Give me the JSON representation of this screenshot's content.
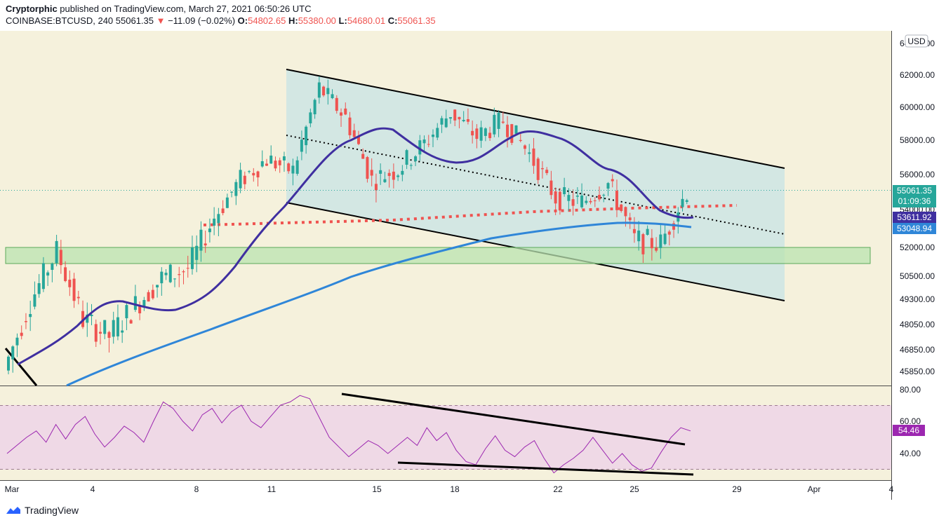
{
  "header": {
    "author": "Cryptorphic",
    "published": "published on TradingView.com, March 27, 2021 06:50:26 UTC",
    "symbol": "COINBASE:BTCUSD, 240",
    "last": "55061.35",
    "change": "−11.09 (−0.02%)",
    "o_label": "O:",
    "o": "54802.65",
    "h_label": "H:",
    "h": "55380.00",
    "l_label": "L:",
    "l": "54680.01",
    "c_label": "C:",
    "c": "55061.35"
  },
  "footer": {
    "brand": "TradingView"
  },
  "colors": {
    "background": "#f5f1dc",
    "up": "#26a69a",
    "down": "#ef5350",
    "channel_fill": "#cfe6e3",
    "support_zone": "#b9e3b0",
    "ema_short": "#3f2fa0",
    "ema_long": "#2f86d8",
    "rsi_line": "#9c27b0",
    "rsi_band": "#efd9e6"
  },
  "chart_data": [
    {
      "type": "candlestick",
      "title": "COINBASE:BTCUSD, 240",
      "price_unit": "USD",
      "y_ticks": [
        "64000.00",
        "62000.00",
        "60000.00",
        "58000.00",
        "56000.00",
        "54000.00",
        "52000.00",
        "50500.00",
        "49300.00",
        "48050.00",
        "46850.00",
        "45850.00"
      ],
      "x_ticks": [
        "Mar",
        "4",
        "8",
        "11",
        "15",
        "18",
        "22",
        "25",
        "29",
        "Apr",
        "4"
      ],
      "last_price": "55061.35",
      "countdown": "01:09:36",
      "ema_short_value": "53611.92",
      "ema_long_value": "53048.94",
      "ohlc_samples": [
        {
          "date": "Mar 1",
          "o": 45200,
          "h": 46200,
          "l": 44900,
          "c": 45900
        },
        {
          "date": "Mar 2",
          "o": 48000,
          "h": 49900,
          "l": 47200,
          "c": 49200
        },
        {
          "date": "Mar 3",
          "o": 50800,
          "h": 52500,
          "l": 50200,
          "c": 51800
        },
        {
          "date": "Mar 4",
          "o": 50200,
          "h": 50900,
          "l": 47800,
          "c": 48300
        },
        {
          "date": "Mar 5",
          "o": 47900,
          "h": 48800,
          "l": 46400,
          "c": 47500
        },
        {
          "date": "Mar 6",
          "o": 48500,
          "h": 49500,
          "l": 48000,
          "c": 49000
        },
        {
          "date": "Mar 7",
          "o": 49200,
          "h": 50700,
          "l": 48900,
          "c": 50400
        },
        {
          "date": "Mar 8",
          "o": 50500,
          "h": 51600,
          "l": 49800,
          "c": 50900
        },
        {
          "date": "Mar 9",
          "o": 52000,
          "h": 53900,
          "l": 51600,
          "c": 53600
        },
        {
          "date": "Mar 10",
          "o": 54500,
          "h": 56100,
          "l": 53900,
          "c": 55700
        },
        {
          "date": "Mar 11",
          "o": 55600,
          "h": 57400,
          "l": 55000,
          "c": 56900
        },
        {
          "date": "Mar 12",
          "o": 57400,
          "h": 58000,
          "l": 55200,
          "c": 56200
        },
        {
          "date": "Mar 13",
          "o": 57600,
          "h": 61500,
          "l": 56900,
          "c": 61200
        },
        {
          "date": "Mar 14",
          "o": 61000,
          "h": 61800,
          "l": 59100,
          "c": 59400
        },
        {
          "date": "Mar 15",
          "o": 59300,
          "h": 60500,
          "l": 55000,
          "c": 55700
        },
        {
          "date": "Mar 16",
          "o": 55400,
          "h": 56600,
          "l": 54000,
          "c": 56300
        },
        {
          "date": "Mar 17",
          "o": 56400,
          "h": 58200,
          "l": 54600,
          "c": 57800
        },
        {
          "date": "Mar 18",
          "o": 58000,
          "h": 60200,
          "l": 57200,
          "c": 59700
        },
        {
          "date": "Mar 19",
          "o": 59100,
          "h": 59700,
          "l": 57600,
          "c": 58200
        },
        {
          "date": "Mar 20",
          "o": 58400,
          "h": 59900,
          "l": 57900,
          "c": 59200
        },
        {
          "date": "Mar 21",
          "o": 58900,
          "h": 59200,
          "l": 56100,
          "c": 57200
        },
        {
          "date": "Mar 22",
          "o": 57500,
          "h": 58500,
          "l": 54300,
          "c": 54700
        },
        {
          "date": "Mar 23",
          "o": 54800,
          "h": 55700,
          "l": 53500,
          "c": 54400
        },
        {
          "date": "Mar 24",
          "o": 55200,
          "h": 57100,
          "l": 54000,
          "c": 55500
        },
        {
          "date": "Mar 25",
          "o": 55600,
          "h": 56600,
          "l": 51900,
          "c": 52400
        },
        {
          "date": "Mar 26",
          "o": 51800,
          "h": 52800,
          "l": 50400,
          "c": 52200
        },
        {
          "date": "Mar 27",
          "o": 54800,
          "h": 55380,
          "l": 54680,
          "c": 55061
        }
      ],
      "support_zone": [
        51300,
        52300
      ],
      "horizontal_level_dotted": 54100
    },
    {
      "type": "line",
      "title": "RSI",
      "y_ticks": [
        "80.00",
        "60.00",
        "40.00"
      ],
      "band": [
        30,
        70
      ],
      "last_value": "54.46",
      "values": [
        40,
        45,
        50,
        54,
        47,
        58,
        49,
        58,
        63,
        52,
        44,
        50,
        57,
        53,
        47,
        60,
        72,
        68,
        60,
        54,
        64,
        68,
        59,
        66,
        70,
        60,
        56,
        63,
        70,
        72,
        76,
        74,
        62,
        50,
        44,
        38,
        43,
        48,
        45,
        40,
        45,
        50,
        45,
        56,
        48,
        53,
        42,
        35,
        33,
        43,
        51,
        42,
        38,
        44,
        48,
        37,
        28,
        33,
        37,
        42,
        50,
        42,
        34,
        40,
        33,
        29,
        31,
        41,
        50,
        56,
        54
      ]
    }
  ]
}
